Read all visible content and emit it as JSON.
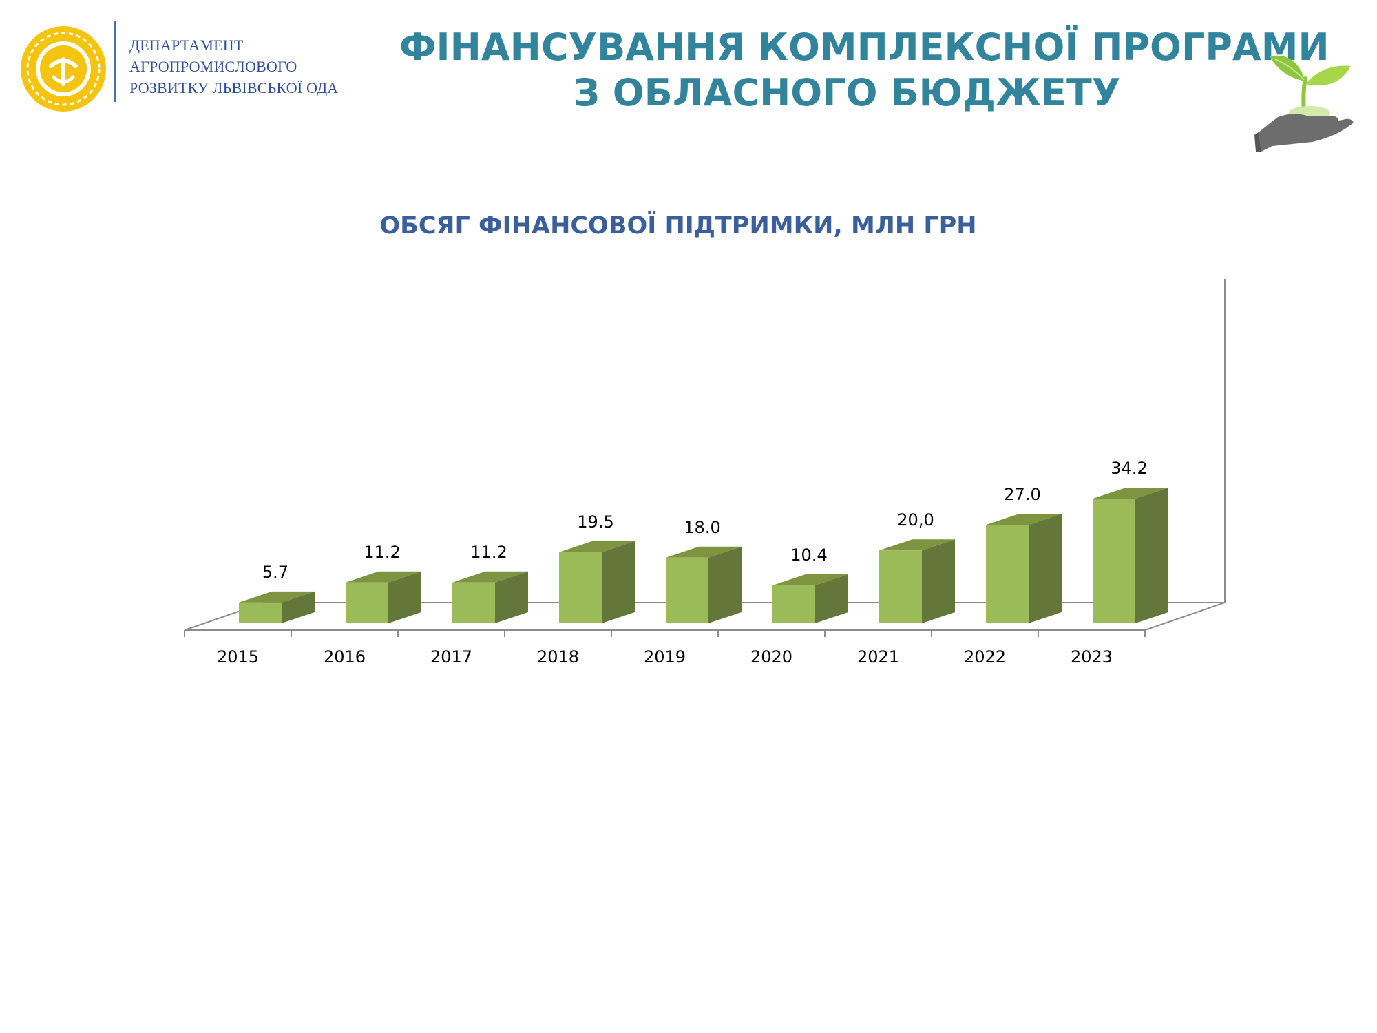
{
  "header": {
    "org_lines": [
      "ДЕПАРТАМЕНТ",
      "АГРОПРОМИСЛОВОГО",
      "РОЗВИТКУ ЛЬВІВСЬКОЇ ОДА"
    ],
    "title_lines": [
      "ФІНАНСУВАННЯ КОМПЛЕКСНОЇ ПРОГРАМИ",
      "З ОБЛАСНОГО БЮДЖЕТУ"
    ],
    "logo_icon": "department-emblem-icon",
    "plant_icon": "plant-in-hand-icon"
  },
  "colors": {
    "title": "#31849b",
    "org_text": "#2e4d9a",
    "bar_front": "#9bbb59",
    "bar_side": "#64773a",
    "bar_top": "#7d9441",
    "axis": "#8c8c8c"
  },
  "chart_data": {
    "type": "bar",
    "title": "ОБСЯГ ФІНАНСОВОЇ ПІДТРИМКИ, МЛН ГРН",
    "xlabel": "",
    "ylabel": "",
    "categories": [
      "2015",
      "2016",
      "2017",
      "2018",
      "2019",
      "2020",
      "2021",
      "2022",
      "2023"
    ],
    "values": [
      5.7,
      11.2,
      11.2,
      19.5,
      18.0,
      10.4,
      20.0,
      27.0,
      34.2
    ],
    "data_labels": [
      "5.7",
      "11.2",
      "11.2",
      "19.5",
      "18.0",
      "10.4",
      "20,0",
      "27.0",
      "34.2"
    ],
    "ylim": [
      0,
      50
    ],
    "grid": false,
    "style": "3d-column",
    "legend": "none"
  }
}
